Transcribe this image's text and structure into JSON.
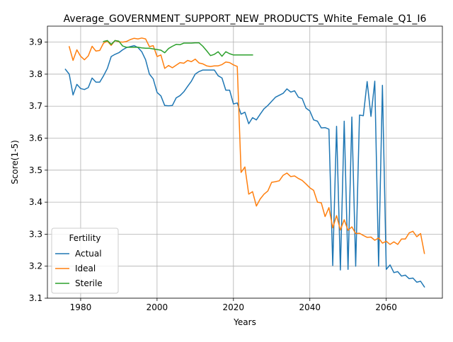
{
  "chart_data": {
    "type": "line",
    "title": "Average_GOVERNMENT_SUPPORT_NEW_PRODUCTS_White_Female_Q1_I6",
    "xlabel": "Years",
    "ylabel": "Score(1-5)",
    "xlim": [
      1971.3,
      2074.7
    ],
    "ylim": [
      3.1,
      3.95
    ],
    "xticks": [
      1980,
      2000,
      2020,
      2040,
      2060
    ],
    "yticks": [
      3.1,
      3.2,
      3.3,
      3.4,
      3.5,
      3.6,
      3.7,
      3.8,
      3.9
    ],
    "grid": true,
    "legend": {
      "title": "Fertility",
      "position": "lower-left"
    },
    "series": [
      {
        "name": "Actual",
        "color": "#1f77b4",
        "x": [
          1976,
          1977,
          1978,
          1979,
          1980,
          1981,
          1982,
          1983,
          1984,
          1985,
          1986,
          1987,
          1988,
          1989,
          1990,
          1991,
          1992,
          1993,
          1994,
          1995,
          1996,
          1997,
          1998,
          1999,
          2000,
          2001,
          2002,
          2003,
          2004,
          2005,
          2006,
          2007,
          2008,
          2009,
          2010,
          2011,
          2012,
          2013,
          2014,
          2015,
          2016,
          2017,
          2018,
          2019,
          2020,
          2021,
          2022,
          2023,
          2024,
          2025,
          2026,
          2027,
          2028,
          2029,
          2030,
          2031,
          2032,
          2033,
          2034,
          2035,
          2036,
          2037,
          2038,
          2039,
          2040,
          2041,
          2042,
          2043,
          2044,
          2045,
          2046,
          2047,
          2048,
          2049,
          2050,
          2051,
          2052,
          2053,
          2054,
          2055,
          2056,
          2057,
          2058,
          2059,
          2060,
          2061,
          2062,
          2063,
          2064,
          2065,
          2066,
          2067,
          2068,
          2069,
          2070
        ],
        "y": [
          3.815,
          3.8,
          3.735,
          3.768,
          3.755,
          3.752,
          3.758,
          3.788,
          3.775,
          3.775,
          3.795,
          3.818,
          3.855,
          3.862,
          3.867,
          3.876,
          3.883,
          3.886,
          3.889,
          3.883,
          3.87,
          3.845,
          3.8,
          3.785,
          3.743,
          3.732,
          3.702,
          3.701,
          3.702,
          3.726,
          3.733,
          3.745,
          3.762,
          3.778,
          3.8,
          3.808,
          3.813,
          3.813,
          3.813,
          3.813,
          3.795,
          3.788,
          3.75,
          3.75,
          3.707,
          3.71,
          3.675,
          3.681,
          3.645,
          3.664,
          3.657,
          3.675,
          3.692,
          3.702,
          3.715,
          3.728,
          3.734,
          3.74,
          3.754,
          3.744,
          3.748,
          3.728,
          3.724,
          3.694,
          3.685,
          3.657,
          3.653,
          3.632,
          3.633,
          3.628,
          3.202,
          3.637,
          3.188,
          3.653,
          3.19,
          3.666,
          3.2,
          3.672,
          3.67,
          3.777,
          3.668,
          3.778,
          3.2,
          3.765,
          3.19,
          3.204,
          3.18,
          3.183,
          3.169,
          3.172,
          3.161,
          3.163,
          3.15,
          3.153,
          3.135
        ]
      },
      {
        "name": "Ideal",
        "color": "#ff7f0e",
        "x": [
          1977,
          1978,
          1979,
          1980,
          1981,
          1982,
          1983,
          1984,
          1985,
          1986,
          1987,
          1988,
          1989,
          1990,
          1991,
          1992,
          1993,
          1994,
          1995,
          1996,
          1997,
          1998,
          1999,
          2000,
          2001,
          2002,
          2003,
          2004,
          2005,
          2006,
          2007,
          2008,
          2009,
          2010,
          2011,
          2012,
          2013,
          2014,
          2015,
          2016,
          2017,
          2018,
          2019,
          2020,
          2021,
          2022,
          2023,
          2024,
          2025,
          2026,
          2027,
          2028,
          2029,
          2030,
          2031,
          2032,
          2033,
          2034,
          2035,
          2036,
          2037,
          2038,
          2039,
          2040,
          2041,
          2042,
          2043,
          2044,
          2045,
          2046,
          2047,
          2048,
          2049,
          2050,
          2051,
          2052,
          2053,
          2054,
          2055,
          2056,
          2057,
          2058,
          2059,
          2060,
          2061,
          2062,
          2063,
          2064,
          2065,
          2066,
          2067,
          2068,
          2069,
          2070
        ],
        "y": [
          3.886,
          3.843,
          3.876,
          3.856,
          3.845,
          3.857,
          3.887,
          3.872,
          3.874,
          3.897,
          3.903,
          3.89,
          3.905,
          3.901,
          3.9,
          3.902,
          3.908,
          3.912,
          3.91,
          3.913,
          3.91,
          3.886,
          3.889,
          3.855,
          3.86,
          3.818,
          3.827,
          3.82,
          3.828,
          3.836,
          3.834,
          3.843,
          3.839,
          3.847,
          3.835,
          3.832,
          3.826,
          3.824,
          3.826,
          3.826,
          3.83,
          3.838,
          3.836,
          3.829,
          3.824,
          3.493,
          3.51,
          3.425,
          3.433,
          3.388,
          3.41,
          3.425,
          3.435,
          3.462,
          3.464,
          3.467,
          3.484,
          3.491,
          3.48,
          3.482,
          3.474,
          3.468,
          3.457,
          3.445,
          3.437,
          3.4,
          3.398,
          3.355,
          3.383,
          3.32,
          3.358,
          3.313,
          3.345,
          3.312,
          3.323,
          3.302,
          3.303,
          3.296,
          3.29,
          3.291,
          3.281,
          3.288,
          3.272,
          3.278,
          3.268,
          3.276,
          3.268,
          3.285,
          3.285,
          3.304,
          3.309,
          3.292,
          3.302,
          3.24
        ]
      },
      {
        "name": "Sterile",
        "color": "#2ca02c",
        "x": [
          1986,
          1987,
          1988,
          1989,
          1990,
          1991,
          1992,
          1993,
          1994,
          1995,
          1996,
          1997,
          1998,
          1999,
          2000,
          2001,
          2002,
          2003,
          2004,
          2005,
          2006,
          2007,
          2008,
          2009,
          2010,
          2011,
          2012,
          2013,
          2014,
          2015,
          2016,
          2017,
          2018,
          2019,
          2020,
          2021,
          2022,
          2023,
          2024,
          2025
        ],
        "y": [
          3.902,
          3.905,
          3.893,
          3.905,
          3.903,
          3.888,
          3.884,
          3.884,
          3.884,
          3.884,
          3.882,
          3.881,
          3.881,
          3.879,
          3.877,
          3.875,
          3.867,
          3.88,
          3.887,
          3.893,
          3.892,
          3.897,
          3.897,
          3.897,
          3.898,
          3.898,
          3.887,
          3.873,
          3.858,
          3.862,
          3.87,
          3.856,
          3.87,
          3.864,
          3.86,
          3.86,
          3.86,
          3.86,
          3.86,
          3.86
        ]
      }
    ]
  }
}
